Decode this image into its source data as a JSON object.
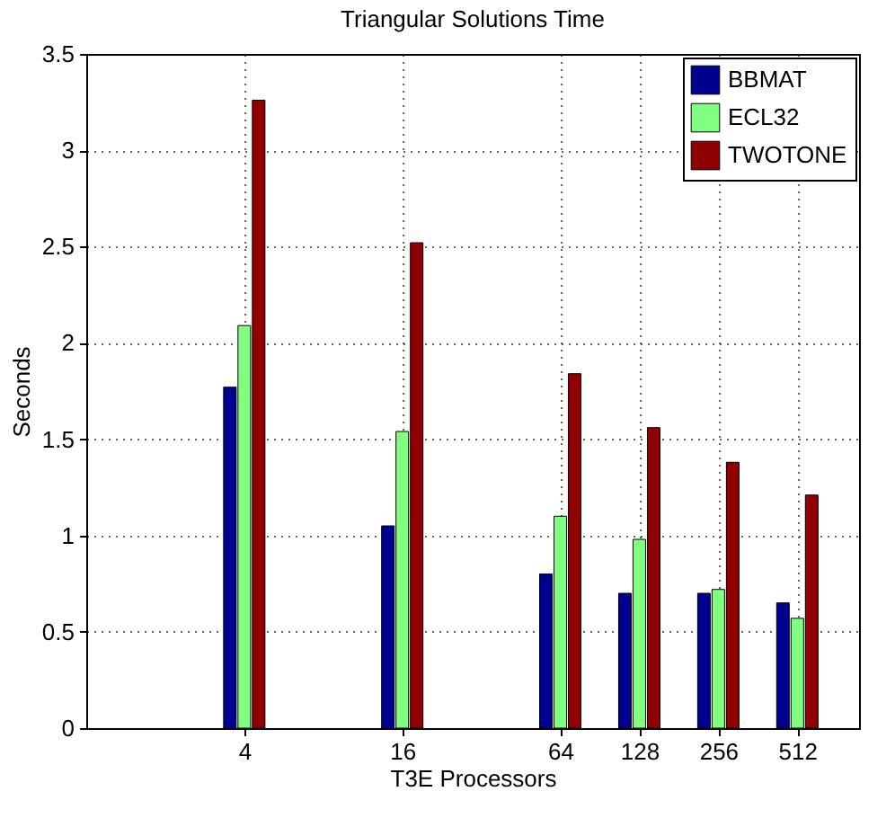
{
  "chart_data": {
    "type": "bar",
    "title": "Triangular Solutions Time",
    "xlabel": "T3E Processors",
    "ylabel": "Seconds",
    "x": [
      4,
      16,
      64,
      128,
      256,
      512
    ],
    "log": "x",
    "xlim": [
      1,
      880
    ],
    "xticks": [
      4,
      16,
      64,
      128,
      256,
      512
    ],
    "ylim": [
      0,
      3.5
    ],
    "yticks": [
      0,
      0.5,
      1,
      1.5,
      2,
      2.5,
      3,
      3.5
    ],
    "grid": true,
    "legend": "top right",
    "series": [
      {
        "name": "BBMAT",
        "color": "#000090",
        "values": [
          1.77,
          1.05,
          0.8,
          0.7,
          0.7,
          0.65
        ]
      },
      {
        "name": "ECL32",
        "color": "#80ff80",
        "values": [
          2.09,
          1.54,
          1.1,
          0.98,
          0.72,
          0.57
        ]
      },
      {
        "name": "TWOTONE",
        "color": "#900000",
        "values": [
          3.26,
          2.52,
          1.84,
          1.56,
          1.38,
          1.21
        ]
      }
    ]
  }
}
